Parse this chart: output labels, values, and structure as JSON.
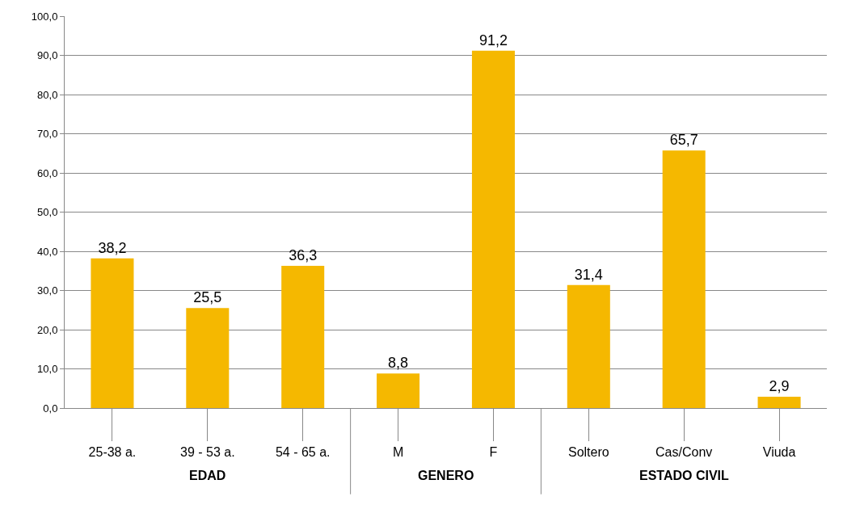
{
  "chart_data": {
    "type": "bar",
    "categories": [
      "25-38 a.",
      "39 - 53 a.",
      "54 - 65 a.",
      "M",
      "F",
      "Soltero",
      "Cas/Conv",
      "Viuda"
    ],
    "values": [
      38.2,
      25.5,
      36.3,
      8.8,
      91.2,
      31.4,
      65.7,
      2.9
    ],
    "value_labels": [
      "38,2",
      "25,5",
      "36,3",
      "8,8",
      "91,2",
      "31,4",
      "65,7",
      "2,9"
    ],
    "color": "#f5b800",
    "ylim": [
      0,
      100
    ],
    "yticks": [
      {
        "value": 0,
        "label": "0,0"
      },
      {
        "value": 10,
        "label": "10,0"
      },
      {
        "value": 20,
        "label": "20,0"
      },
      {
        "value": 30,
        "label": "30,0"
      },
      {
        "value": 40,
        "label": "40,0"
      },
      {
        "value": 50,
        "label": "50,0"
      },
      {
        "value": 60,
        "label": "60,0"
      },
      {
        "value": 70,
        "label": "70,0"
      },
      {
        "value": 80,
        "label": "80,0"
      },
      {
        "value": 90,
        "label": "90,0"
      },
      {
        "value": 100,
        "label": "100,0"
      }
    ],
    "grid": "y",
    "annotations": [
      "EDAD",
      "GENERO",
      "ESTADO CIVIL"
    ]
  }
}
